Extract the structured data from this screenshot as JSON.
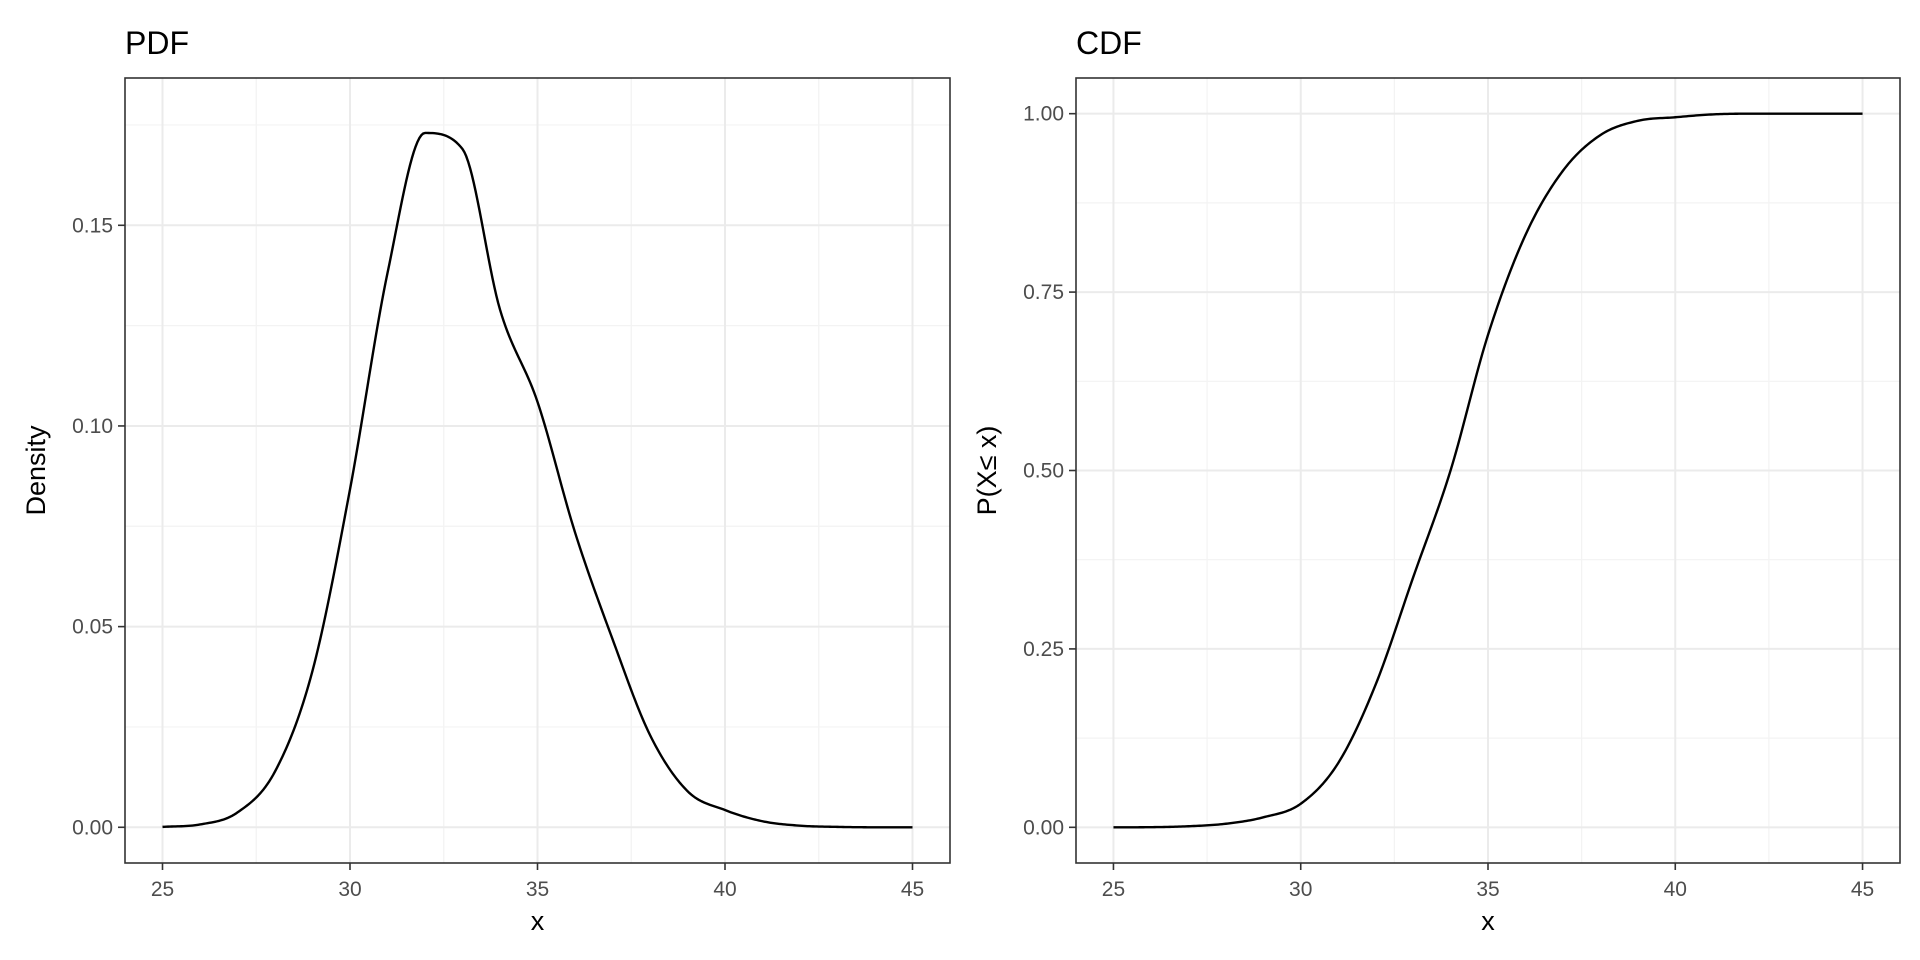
{
  "chart_data": [
    {
      "type": "line",
      "title": "PDF",
      "xlabel": "x",
      "ylabel": "Density",
      "xlim": [
        24.0,
        46.0
      ],
      "ylim": [
        -0.0089,
        0.1867
      ],
      "x_ticks": [
        25,
        30,
        35,
        40,
        45
      ],
      "x_tick_labels": [
        "25",
        "30",
        "35",
        "40",
        "45"
      ],
      "y_ticks": [
        0.0,
        0.05,
        0.1,
        0.15
      ],
      "y_tick_labels": [
        "0.00",
        "0.05",
        "0.10",
        "0.15"
      ],
      "grid": true,
      "series": [
        {
          "color": "#000000",
          "x": [
            25,
            26,
            27,
            28,
            29,
            30,
            31,
            32,
            33,
            34,
            35,
            36,
            37,
            38,
            39,
            40,
            41,
            42,
            43,
            44,
            45
          ],
          "y": [
            0.0001,
            0.0007,
            0.0037,
            0.0139,
            0.039,
            0.0842,
            0.1381,
            0.173,
            0.169,
            0.129,
            0.106,
            0.0735,
            0.0469,
            0.023,
            0.009,
            0.0043,
            0.0015,
            0.0004,
            0.0001,
            0.0,
            0.0
          ]
        }
      ]
    },
    {
      "type": "line",
      "title": "CDF",
      "xlabel": "x",
      "ylabel": "P(X≤ x)",
      "xlim": [
        24.0,
        46.0
      ],
      "ylim": [
        -0.05,
        1.05
      ],
      "x_ticks": [
        25,
        30,
        35,
        40,
        45
      ],
      "x_tick_labels": [
        "25",
        "30",
        "35",
        "40",
        "45"
      ],
      "y_ticks": [
        0.0,
        0.25,
        0.5,
        0.75,
        1.0
      ],
      "y_tick_labels": [
        "0.00",
        "0.25",
        "0.50",
        "0.75",
        "1.00"
      ],
      "grid": true,
      "series": [
        {
          "color": "#000000",
          "x": [
            25,
            26,
            27,
            28,
            29,
            30,
            31,
            32,
            33,
            34,
            35,
            36,
            37,
            38,
            39,
            40,
            41,
            42,
            43,
            44,
            45
          ],
          "y": [
            0.0,
            0.0002,
            0.0015,
            0.005,
            0.014,
            0.033,
            0.09,
            0.2,
            0.35,
            0.5,
            0.69,
            0.83,
            0.92,
            0.97,
            0.99,
            0.995,
            0.999,
            1.0,
            1.0,
            1.0,
            1.0
          ]
        }
      ]
    }
  ]
}
